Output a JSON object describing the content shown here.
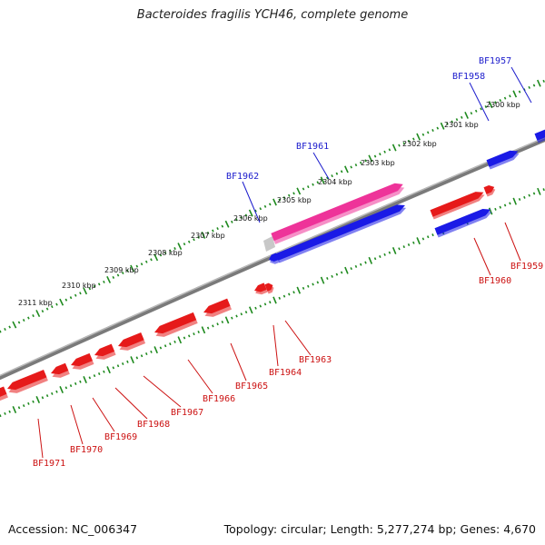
{
  "title": "Bacteroides fragilis YCH46, complete genome",
  "footer": {
    "accession": "Accession: NC_006347",
    "summary": "Topology: circular; Length: 5,277,274 bp; Genes: 4,670"
  },
  "colors": {
    "backbone": "#8a8a8a",
    "forward_gene": "#1a1ae6",
    "reverse_gene": "#e61a1a",
    "highlight_gene": "#ee3399",
    "forward_label": "#1a1acc",
    "reverse_label": "#cc1111",
    "tick": "#1e8a1e"
  },
  "scale_labels": [
    "2300 kbp",
    "2301 kbp",
    "2302 kbp",
    "2303 kbp",
    "2304 kbp",
    "2305 kbp",
    "2306 kbp",
    "2307 kbp",
    "2308 kbp",
    "2309 kbp",
    "2310 kbp",
    "2311 kbp"
  ],
  "forward_genes": [
    {
      "label": "BF1957"
    },
    {
      "label": "BF1958"
    },
    {
      "label": "BF1961"
    },
    {
      "label": "BF1962"
    }
  ],
  "reverse_genes": [
    {
      "label": "BF1959"
    },
    {
      "label": "BF1960"
    },
    {
      "label": "BF1963"
    },
    {
      "label": "BF1964"
    },
    {
      "label": "BF1965"
    },
    {
      "label": "BF1966"
    },
    {
      "label": "BF1967"
    },
    {
      "label": "BF1968"
    },
    {
      "label": "BF1969"
    },
    {
      "label": "BF1970"
    },
    {
      "label": "BF1971"
    }
  ]
}
